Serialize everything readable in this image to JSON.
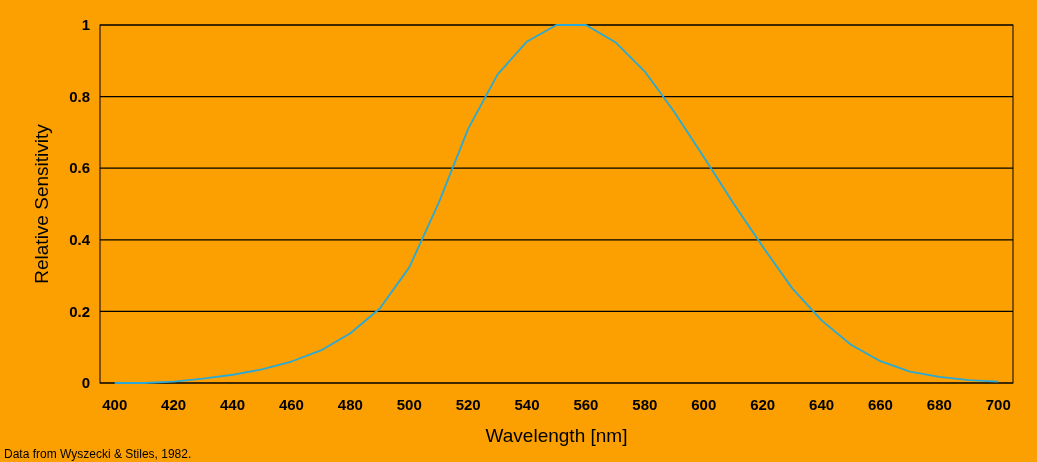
{
  "chart_data": {
    "type": "line",
    "xlabel": "Wavelength [nm]",
    "ylabel": "Relative Sensitivity",
    "annotations": [
      "Data from Wyszecki & Stiles, 1982."
    ],
    "x": [
      400,
      410,
      420,
      430,
      440,
      450,
      460,
      470,
      480,
      490,
      500,
      510,
      520,
      530,
      540,
      550,
      560,
      570,
      580,
      590,
      600,
      610,
      620,
      630,
      640,
      650,
      660,
      670,
      680,
      690,
      700
    ],
    "series": [
      {
        "color": "#2aa9d6",
        "values": [
          0,
          0,
          0.004,
          0.012,
          0.023,
          0.038,
          0.06,
          0.091,
          0.139,
          0.208,
          0.323,
          0.503,
          0.71,
          0.862,
          0.954,
          1.0,
          1.0,
          0.952,
          0.87,
          0.757,
          0.631,
          0.503,
          0.381,
          0.265,
          0.175,
          0.107,
          0.061,
          0.032,
          0.017,
          0.008,
          0.004
        ]
      }
    ],
    "xlim": [
      395,
      705
    ],
    "xticks": [
      400,
      420,
      440,
      460,
      480,
      500,
      520,
      540,
      560,
      580,
      600,
      620,
      640,
      660,
      680,
      700
    ],
    "ylim": [
      0,
      1
    ],
    "yticks": [
      0,
      0.2,
      0.4,
      0.6,
      0.8,
      1
    ],
    "grid": "y",
    "marker": "none",
    "line_style": "solid"
  }
}
